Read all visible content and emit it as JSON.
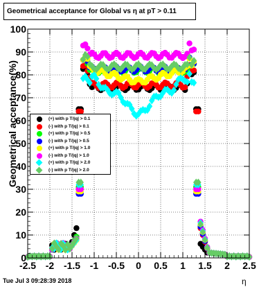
{
  "title": "Geometrical acceptance for Global vs  η at pT > 0.11",
  "timestamp": "Tue Jul  3 09:28:39 2018",
  "chart_data": {
    "type": "scatter",
    "xlabel": "η",
    "ylabel": "Geometrical acceptance(%)",
    "xlim": [
      -2.5,
      2.5
    ],
    "ylim": [
      0,
      100
    ],
    "xticks": [
      "-2.5",
      "-2",
      "-1.5",
      "-1",
      "-0.5",
      "0",
      "0.5",
      "1",
      "1.5",
      "2",
      "2.5"
    ],
    "yticks": [
      "0",
      "10",
      "20",
      "30",
      "40",
      "50",
      "60",
      "70",
      "80",
      "90",
      "100"
    ],
    "grid": true,
    "legend_position": "left-middle",
    "series": [
      {
        "name": "(+) with p T/|q| > 0.1",
        "color": "#000000",
        "marker": "circle",
        "kind": "c",
        "plateau": 74.5,
        "edge": 65,
        "spike": 16,
        "back": 9
      },
      {
        "name": "(-) with p T/|q| > 0.1",
        "color": "#ff0000",
        "marker": "circle",
        "kind": "b",
        "plateau": 75.5,
        "edge": 64,
        "spike": 10,
        "back": 21
      },
      {
        "name": "(+) with p T/|q| > 0.5",
        "color": "#00ff00",
        "marker": "circle",
        "kind": "a",
        "plateau": 82,
        "edge": 31,
        "spike": 11,
        "back": 23
      },
      {
        "name": "(-) with p T/|q| > 0.5",
        "color": "#0000ff",
        "marker": "circle",
        "kind": "a",
        "plateau": 82.5,
        "edge": 28,
        "spike": 10,
        "back": 22
      },
      {
        "name": "(+) with p T/|q| > 1.0",
        "color": "#ffff00",
        "marker": "circle",
        "kind": "y",
        "plateau": 77,
        "edge": 29,
        "spike": 9,
        "back": 24
      },
      {
        "name": "(-) with p T/|q| > 1.0",
        "color": "#ff00ff",
        "marker": "circle",
        "kind": "a",
        "plateau": 88.5,
        "edge": 30,
        "spike": 10,
        "back": 26
      },
      {
        "name": "(+) with p T/|q| > 2.0",
        "color": "#00ffff",
        "marker": "diamond",
        "kind": "d",
        "plateau": 69,
        "edge": 32,
        "spike": 9,
        "back": 25
      },
      {
        "name": "(-) with p T/|q| > 2.0",
        "color": "#66cc66",
        "marker": "diamond",
        "kind": "a",
        "plateau": 83.5,
        "edge": 33,
        "spike": 10,
        "back": 24
      }
    ]
  }
}
